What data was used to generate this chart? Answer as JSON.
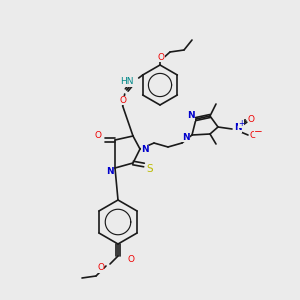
{
  "bg_color": "#ebebeb",
  "atom_colors": {
    "C": "#1a1a1a",
    "N": "#0000cc",
    "O": "#ee0000",
    "S": "#bbbb00",
    "H": "#008888"
  },
  "figsize": [
    3.0,
    3.0
  ],
  "dpi": 100
}
